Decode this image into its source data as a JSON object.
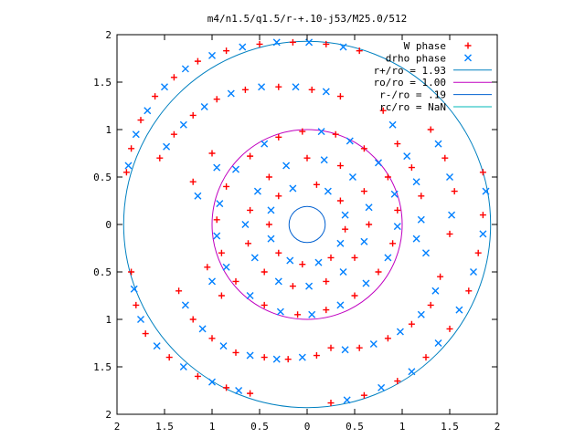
{
  "chart_data": {
    "type": "scatter",
    "title": "m4/n1.5/q1.5/r-+.10-j53/M25.0/512",
    "xlim": [
      -2,
      2
    ],
    "ylim": [
      -2,
      2
    ],
    "x_ticks": [
      -2,
      -1.5,
      -1,
      -0.5,
      0,
      0.5,
      1,
      1.5,
      2
    ],
    "y_ticks": [
      -2,
      -1.5,
      -1,
      -0.5,
      0,
      0.5,
      1,
      1.5,
      2
    ],
    "x_tick_labels": [
      "2",
      "1.5",
      "1",
      "0.5",
      "0",
      "0.5",
      "1",
      "1.5",
      "2"
    ],
    "y_tick_labels": [
      "2",
      "1.5",
      "1",
      "0.5",
      "0",
      "0.5",
      "1",
      "1.5",
      "2"
    ],
    "grid": false,
    "legend_position": "top-right",
    "legend": [
      {
        "label": "W phase",
        "kind": "marker",
        "marker": "plus",
        "color": "#ff0000"
      },
      {
        "label": "drho phase",
        "kind": "marker",
        "marker": "cross",
        "color": "#0080ff"
      },
      {
        "label": "r+/ro = 1.93",
        "kind": "line",
        "color": "#0080c0"
      },
      {
        "label": "ro/ro = 1.00",
        "kind": "line",
        "color": "#c000c0"
      },
      {
        "label": "r-/ro = .19",
        "kind": "line",
        "color": "#0060d0"
      },
      {
        "label": "rc/ro = NaN",
        "kind": "line",
        "color": "#00b8b8"
      }
    ],
    "circles": [
      {
        "name": "r+/ro = 1.93",
        "radius": 1.93,
        "color": "#0080c0"
      },
      {
        "name": "ro/ro = 1.00",
        "radius": 1.0,
        "color": "#c000c0"
      },
      {
        "name": "r-/ro = .19",
        "radius": 0.19,
        "color": "#0060d0"
      }
    ],
    "series": [
      {
        "name": "W phase",
        "marker": "plus",
        "color": "#ff0000",
        "points": [
          [
            -1.9,
            0.55
          ],
          [
            -1.85,
            0.8
          ],
          [
            -1.75,
            1.1
          ],
          [
            -1.6,
            1.35
          ],
          [
            -1.4,
            1.55
          ],
          [
            -1.15,
            1.72
          ],
          [
            -0.85,
            1.83
          ],
          [
            -0.5,
            1.9
          ],
          [
            -0.15,
            1.92
          ],
          [
            0.2,
            1.9
          ],
          [
            0.55,
            1.83
          ],
          [
            -1.55,
            0.7
          ],
          [
            -1.4,
            0.95
          ],
          [
            -1.2,
            1.15
          ],
          [
            -0.95,
            1.32
          ],
          [
            -0.65,
            1.42
          ],
          [
            -0.3,
            1.45
          ],
          [
            0.05,
            1.42
          ],
          [
            0.35,
            1.35
          ],
          [
            0.8,
            1.2
          ],
          [
            0.95,
            0.85
          ],
          [
            1.1,
            0.6
          ],
          [
            1.2,
            0.3
          ],
          [
            1.3,
            1.0
          ],
          [
            1.45,
            0.7
          ],
          [
            1.55,
            0.35
          ],
          [
            1.5,
            -0.1
          ],
          [
            1.85,
            0.55
          ],
          [
            1.85,
            0.1
          ],
          [
            1.8,
            -0.3
          ],
          [
            1.7,
            -0.7
          ],
          [
            1.5,
            -1.1
          ],
          [
            1.25,
            -1.4
          ],
          [
            0.95,
            -1.65
          ],
          [
            0.6,
            -1.8
          ],
          [
            0.25,
            -1.88
          ],
          [
            1.4,
            -0.55
          ],
          [
            1.3,
            -0.85
          ],
          [
            1.1,
            -1.05
          ],
          [
            0.85,
            -1.2
          ],
          [
            0.55,
            -1.3
          ],
          [
            0.25,
            -1.3
          ],
          [
            -1.35,
            -0.7
          ],
          [
            -1.2,
            -1.0
          ],
          [
            -1.0,
            -1.2
          ],
          [
            -0.75,
            -1.35
          ],
          [
            -0.45,
            -1.4
          ],
          [
            -0.2,
            -1.42
          ],
          [
            0.1,
            -1.38
          ],
          [
            -1.85,
            -0.5
          ],
          [
            -1.8,
            -0.85
          ],
          [
            -1.7,
            -1.15
          ],
          [
            -1.45,
            -1.4
          ],
          [
            -1.15,
            -1.6
          ],
          [
            -0.85,
            -1.72
          ],
          [
            -0.6,
            -1.78
          ],
          [
            -0.05,
            0.98
          ],
          [
            0.3,
            0.95
          ],
          [
            0.6,
            0.8
          ],
          [
            0.85,
            0.5
          ],
          [
            0.95,
            0.15
          ],
          [
            0.9,
            -0.2
          ],
          [
            0.75,
            -0.5
          ],
          [
            0.5,
            -0.75
          ],
          [
            0.2,
            -0.9
          ],
          [
            -0.1,
            -0.95
          ],
          [
            -0.45,
            -0.85
          ],
          [
            -0.75,
            -0.6
          ],
          [
            -0.9,
            -0.3
          ],
          [
            -0.95,
            0.05
          ],
          [
            -0.85,
            0.4
          ],
          [
            -0.6,
            0.72
          ],
          [
            -0.3,
            0.92
          ],
          [
            0.0,
            0.7
          ],
          [
            0.35,
            0.62
          ],
          [
            0.6,
            0.35
          ],
          [
            0.65,
            0.0
          ],
          [
            0.5,
            -0.35
          ],
          [
            0.2,
            -0.6
          ],
          [
            -0.15,
            -0.65
          ],
          [
            -0.45,
            -0.5
          ],
          [
            -0.62,
            -0.2
          ],
          [
            -0.6,
            0.15
          ],
          [
            -0.4,
            0.5
          ],
          [
            0.1,
            0.42
          ],
          [
            0.35,
            0.25
          ],
          [
            0.4,
            -0.05
          ],
          [
            0.25,
            -0.35
          ],
          [
            -0.05,
            -0.42
          ],
          [
            -0.3,
            -0.3
          ],
          [
            -0.4,
            0.0
          ],
          [
            -0.3,
            0.3
          ],
          [
            -1.05,
            -0.45
          ],
          [
            -0.9,
            -0.75
          ],
          [
            -1.2,
            0.45
          ],
          [
            -1.0,
            0.75
          ]
        ]
      },
      {
        "name": "drho phase",
        "marker": "cross",
        "color": "#0080ff",
        "points": [
          [
            -1.88,
            0.62
          ],
          [
            -1.8,
            0.95
          ],
          [
            -1.68,
            1.2
          ],
          [
            -1.5,
            1.45
          ],
          [
            -1.28,
            1.64
          ],
          [
            -1.0,
            1.78
          ],
          [
            -0.68,
            1.87
          ],
          [
            -0.32,
            1.92
          ],
          [
            0.02,
            1.92
          ],
          [
            0.38,
            1.87
          ],
          [
            -1.48,
            0.82
          ],
          [
            -1.3,
            1.05
          ],
          [
            -1.08,
            1.24
          ],
          [
            -0.8,
            1.38
          ],
          [
            -0.48,
            1.45
          ],
          [
            -0.12,
            1.45
          ],
          [
            0.2,
            1.4
          ],
          [
            0.9,
            1.05
          ],
          [
            1.05,
            0.72
          ],
          [
            1.15,
            0.45
          ],
          [
            1.38,
            0.85
          ],
          [
            1.5,
            0.5
          ],
          [
            1.52,
            0.1
          ],
          [
            1.88,
            0.35
          ],
          [
            1.85,
            -0.1
          ],
          [
            1.75,
            -0.5
          ],
          [
            1.6,
            -0.9
          ],
          [
            1.38,
            -1.25
          ],
          [
            1.1,
            -1.55
          ],
          [
            0.78,
            -1.72
          ],
          [
            0.42,
            -1.85
          ],
          [
            1.35,
            -0.7
          ],
          [
            1.2,
            -0.95
          ],
          [
            0.98,
            -1.13
          ],
          [
            0.7,
            -1.26
          ],
          [
            0.4,
            -1.32
          ],
          [
            -1.28,
            -0.85
          ],
          [
            -1.1,
            -1.1
          ],
          [
            -0.88,
            -1.28
          ],
          [
            -0.6,
            -1.38
          ],
          [
            -0.32,
            -1.42
          ],
          [
            -0.05,
            -1.4
          ],
          [
            -1.82,
            -0.68
          ],
          [
            -1.75,
            -1.0
          ],
          [
            -1.58,
            -1.28
          ],
          [
            -1.3,
            -1.5
          ],
          [
            -1.0,
            -1.66
          ],
          [
            -0.72,
            -1.75
          ],
          [
            0.15,
            0.98
          ],
          [
            0.45,
            0.88
          ],
          [
            0.75,
            0.65
          ],
          [
            0.92,
            0.32
          ],
          [
            0.95,
            -0.02
          ],
          [
            0.85,
            -0.35
          ],
          [
            0.62,
            -0.62
          ],
          [
            0.35,
            -0.85
          ],
          [
            0.05,
            -0.95
          ],
          [
            -0.28,
            -0.92
          ],
          [
            -0.6,
            -0.75
          ],
          [
            -0.85,
            -0.45
          ],
          [
            -0.95,
            -0.12
          ],
          [
            -0.92,
            0.22
          ],
          [
            -0.75,
            0.58
          ],
          [
            -0.45,
            0.85
          ],
          [
            0.18,
            0.68
          ],
          [
            0.48,
            0.5
          ],
          [
            0.65,
            0.18
          ],
          [
            0.6,
            -0.18
          ],
          [
            0.38,
            -0.5
          ],
          [
            0.02,
            -0.65
          ],
          [
            -0.3,
            -0.6
          ],
          [
            -0.55,
            -0.35
          ],
          [
            -0.65,
            0.0
          ],
          [
            -0.52,
            0.35
          ],
          [
            -0.22,
            0.62
          ],
          [
            0.22,
            0.35
          ],
          [
            0.4,
            0.1
          ],
          [
            0.35,
            -0.2
          ],
          [
            0.12,
            -0.4
          ],
          [
            -0.18,
            -0.38
          ],
          [
            -0.38,
            -0.15
          ],
          [
            -0.38,
            0.15
          ],
          [
            -0.15,
            0.38
          ],
          [
            1.15,
            -0.15
          ],
          [
            1.2,
            0.05
          ],
          [
            1.25,
            -0.3
          ],
          [
            -1.15,
            0.3
          ],
          [
            -0.95,
            0.6
          ],
          [
            -1.0,
            -0.6
          ]
        ]
      }
    ]
  }
}
